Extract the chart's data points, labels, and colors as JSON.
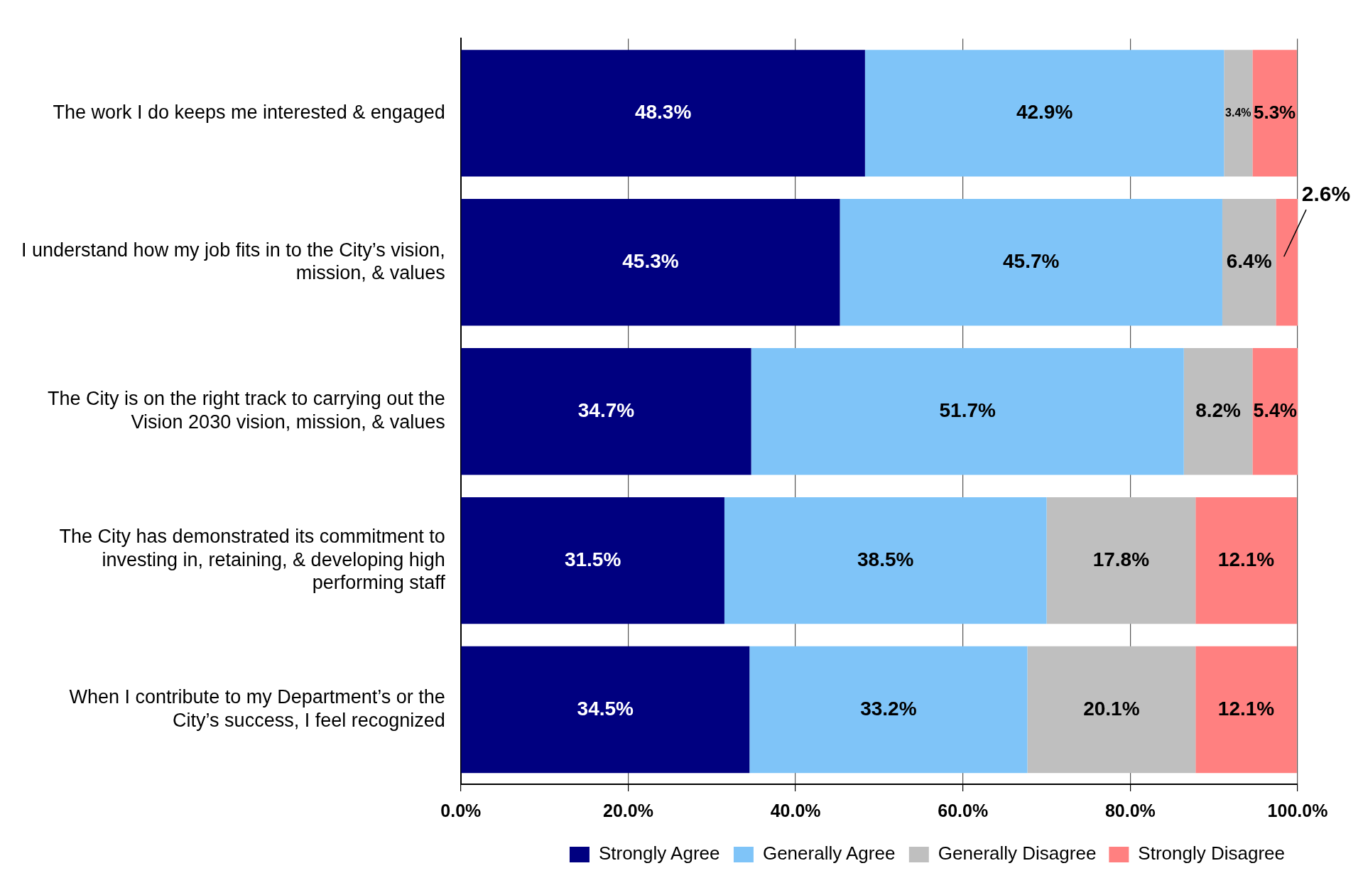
{
  "chart_data": {
    "type": "bar",
    "orientation": "horizontal",
    "stacked": true,
    "categories": [
      "The work I do keeps me interested & engaged",
      "I understand how my job fits in to the City’s vision, mission, & values",
      "The City is on the right track to carrying out the Vision 2030 vision, mission, & values",
      "The City has demonstrated its commitment to investing in, retaining, & developing high performing staff",
      "When I contribute to my Department’s or the City’s success, I feel recognized"
    ],
    "series": [
      {
        "name": "Strongly Agree",
        "color": "#000080",
        "values": [
          48.3,
          45.3,
          34.7,
          31.5,
          34.5
        ],
        "value_labels": [
          "48.3%",
          "45.3%",
          "34.7%",
          "31.5%",
          "34.5%"
        ]
      },
      {
        "name": "Generally Agree",
        "color": "#7fc4f8",
        "values": [
          42.9,
          45.7,
          51.7,
          38.5,
          33.2
        ],
        "value_labels": [
          "42.9%",
          "45.7%",
          "51.7%",
          "38.5%",
          "33.2%"
        ]
      },
      {
        "name": "Generally Disagree",
        "color": "#bfbfbf",
        "values": [
          3.4,
          6.4,
          8.2,
          17.8,
          20.1
        ],
        "value_labels": [
          "3.4%",
          "6.4%",
          "8.2%",
          "17.8%",
          "20.1%"
        ]
      },
      {
        "name": "Strongly Disagree",
        "color": "#ff8080",
        "values": [
          5.3,
          2.6,
          5.4,
          12.1,
          12.1
        ],
        "value_labels": [
          "5.3%",
          "2.6%",
          "5.4%",
          "12.1%",
          "12.1%"
        ]
      }
    ],
    "xlim": [
      0,
      100
    ],
    "xticks": [
      {
        "value": 0,
        "label": "0.0%"
      },
      {
        "value": 20,
        "label": "20.0%"
      },
      {
        "value": 40,
        "label": "40.0%"
      },
      {
        "value": 60,
        "label": "60.0%"
      },
      {
        "value": 80,
        "label": "80.0%"
      },
      {
        "value": 100,
        "label": "100.0%"
      }
    ],
    "grid": "x",
    "legend": "bottom"
  }
}
